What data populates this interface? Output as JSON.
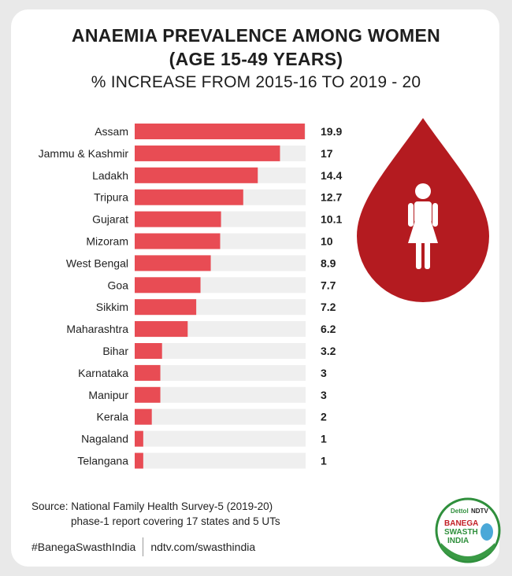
{
  "title_line1": "ANAEMIA PREVALENCE AMONG WOMEN",
  "title_line2": "(AGE 15-49 YEARS)",
  "subtitle": "% INCREASE FROM 2015-16 TO 2019 - 20",
  "source_line1": "Source: National Family Health Survey-5 (2019-20)",
  "source_line2": "phase-1 report covering 17 states and 5 UTs",
  "footer_hashtag": "#BanegaSwasthIndia",
  "footer_url": "ndtv.com/swasthindia",
  "logo": {
    "brand1": "Dettol",
    "brand2": "NDTV",
    "line1": "BANEGA",
    "line2": "SWASTH",
    "line3": "INDIA"
  },
  "colors": {
    "bar": "#e84c54",
    "track": "#efefef",
    "drop": "#b41b20"
  },
  "icon": "woman-in-blood-drop-icon",
  "chart_data": {
    "type": "bar",
    "orientation": "horizontal",
    "categories": [
      "Assam",
      "Jammu & Kashmir",
      "Ladakh",
      "Tripura",
      "Gujarat",
      "Mizoram",
      "West Bengal",
      "Goa",
      "Sikkim",
      "Maharashtra",
      "Bihar",
      "Karnataka",
      "Manipur",
      "Kerala",
      "Nagaland",
      "Telangana"
    ],
    "values": [
      19.9,
      17,
      14.4,
      12.7,
      10.1,
      10,
      8.9,
      7.7,
      7.2,
      6.2,
      3.2,
      3,
      3,
      2,
      1,
      1
    ],
    "labels": [
      "19.9",
      "17",
      "14.4",
      "12.7",
      "10.1",
      "10",
      "8.9",
      "7.7",
      "7.2",
      "6.2",
      "3.2",
      "3",
      "3",
      "2",
      "1",
      "1"
    ],
    "xlim": [
      0,
      20
    ],
    "grid": false,
    "legend": "none"
  }
}
